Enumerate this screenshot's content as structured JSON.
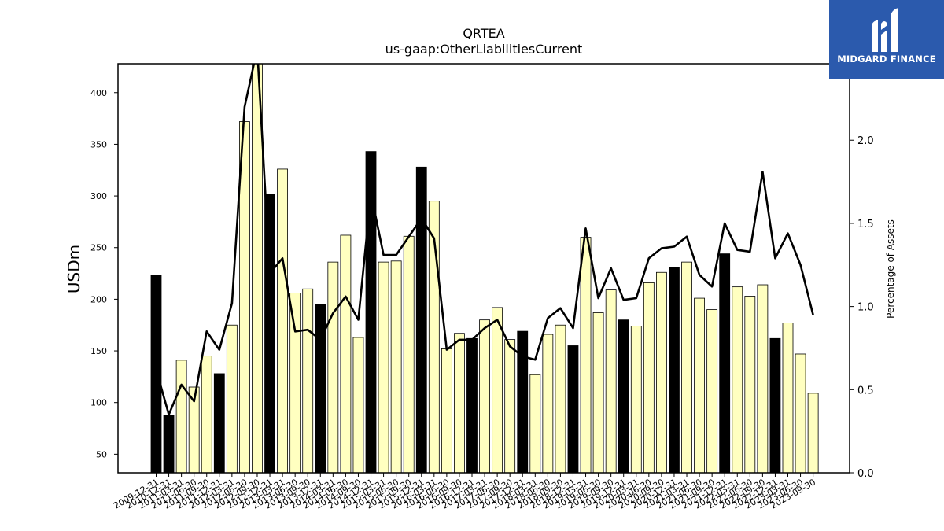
{
  "brand": {
    "name": "MIDGARD FINANCE",
    "color": "#2b5aad",
    "icon": "midgard-logo-icon"
  },
  "chart_data": {
    "type": "bar",
    "title": "QRTEA",
    "subtitle": "us-gaap:OtherLiabilitiesCurrent",
    "ylabel": "USDm",
    "y2label": "Percentage of Assets",
    "ylim": [
      32,
      428
    ],
    "y2lim": [
      0,
      2.46
    ],
    "yticks": [
      50,
      100,
      150,
      200,
      250,
      300,
      350,
      400
    ],
    "y2ticks": [
      0.0,
      0.5,
      1.0,
      1.5,
      2.0
    ],
    "colors": {
      "q4": "#000000",
      "other": "#ffffc0",
      "line": "#000000"
    },
    "categories": [
      "2009-12-31",
      "2010-12-31",
      "2011-03-31",
      "2011-06-30",
      "2011-09-30",
      "2011-12-31",
      "2012-03-31",
      "2012-06-30",
      "2012-09-30",
      "2012-12-31",
      "2013-03-31",
      "2013-06-30",
      "2013-09-30",
      "2013-12-31",
      "2014-03-31",
      "2014-06-30",
      "2014-09-30",
      "2014-12-31",
      "2015-03-31",
      "2015-06-30",
      "2015-09-30",
      "2015-12-31",
      "2016-03-31",
      "2016-06-30",
      "2016-09-30",
      "2016-12-31",
      "2017-03-31",
      "2017-06-30",
      "2017-09-30",
      "2017-12-31",
      "2018-03-31",
      "2018-06-30",
      "2018-09-30",
      "2018-12-31",
      "2019-03-31",
      "2019-06-30",
      "2019-09-30",
      "2019-12-31",
      "2020-03-31",
      "2020-06-30",
      "2020-09-30",
      "2020-12-31",
      "2021-03-31",
      "2021-06-30",
      "2021-09-30",
      "2021-12-31",
      "2022-03-31",
      "2022-06-30",
      "2022-09-30",
      "2022-12-31",
      "2023-03-31",
      "2023-06-30",
      "2023-09-30"
    ],
    "series": [
      {
        "name": "",
        "kind": "bar",
        "values": [
          223,
          88,
          141,
          115,
          145,
          128,
          175,
          372,
          430,
          302,
          326,
          206,
          210,
          195,
          236,
          262,
          163,
          343,
          236,
          237,
          261,
          328,
          295,
          152,
          167,
          162,
          180,
          192,
          161,
          169,
          127,
          166,
          175,
          155,
          260,
          187,
          209,
          180,
          174,
          216,
          226,
          231,
          236,
          201,
          190,
          244,
          212,
          203,
          214,
          162,
          177,
          147,
          109
        ]
      },
      {
        "name": "",
        "kind": "line",
        "values": [
          0.62,
          0.35,
          0.53,
          0.43,
          0.85,
          0.74,
          1.02,
          2.2,
          2.55,
          1.2,
          1.29,
          0.85,
          0.86,
          0.8,
          0.96,
          1.06,
          0.92,
          1.68,
          1.31,
          1.31,
          1.42,
          1.53,
          1.41,
          0.74,
          0.8,
          0.8,
          0.87,
          0.92,
          0.76,
          0.7,
          0.68,
          0.93,
          0.99,
          0.87,
          1.47,
          1.05,
          1.23,
          1.04,
          1.05,
          1.29,
          1.35,
          1.36,
          1.42,
          1.19,
          1.12,
          1.5,
          1.34,
          1.33,
          1.81,
          1.29,
          1.44,
          1.25,
          0.95
        ]
      }
    ]
  }
}
